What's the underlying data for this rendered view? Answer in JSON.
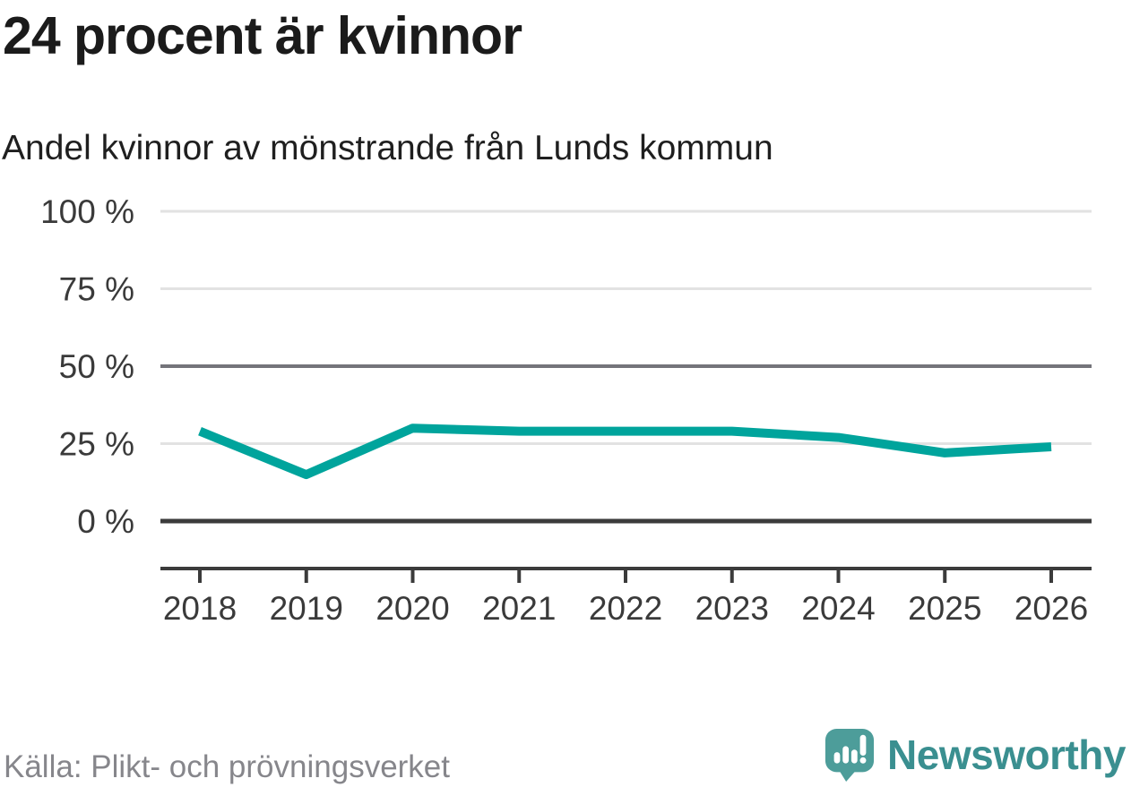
{
  "header": {
    "title": "24 procent är kvinnor",
    "subtitle": "Andel kvinnor av mönstrande från Lunds kommun"
  },
  "chart_data": {
    "type": "line",
    "x": [
      "2018",
      "2019",
      "2020",
      "2021",
      "2022",
      "2023",
      "2024",
      "2025",
      "2026"
    ],
    "series": [
      {
        "name": "Andel kvinnor av mönstrande",
        "values": [
          29,
          15,
          30,
          29,
          29,
          29,
          27,
          22,
          24
        ]
      }
    ],
    "unit": "%",
    "ylim": [
      0,
      100
    ],
    "yticks": [
      0,
      25,
      50,
      75,
      100
    ],
    "ytick_labels": [
      "0 %",
      "25 %",
      "50 %",
      "75 %",
      "100 %"
    ],
    "xlabel": "",
    "ylabel": "",
    "grid": true,
    "legend": "none",
    "line_color": "#00a49c",
    "grid_color_minor": "#e2e2e2",
    "grid_color_mid": "#74747a",
    "axis_color": "#3b3b3b",
    "label_color": "#3a3a3a"
  },
  "footer": {
    "source": "Källa: Plikt- och prövningsverket",
    "brand": "Newsworthy",
    "brand_color": "#3a8f90",
    "logo_color": "#4d9d9a"
  }
}
